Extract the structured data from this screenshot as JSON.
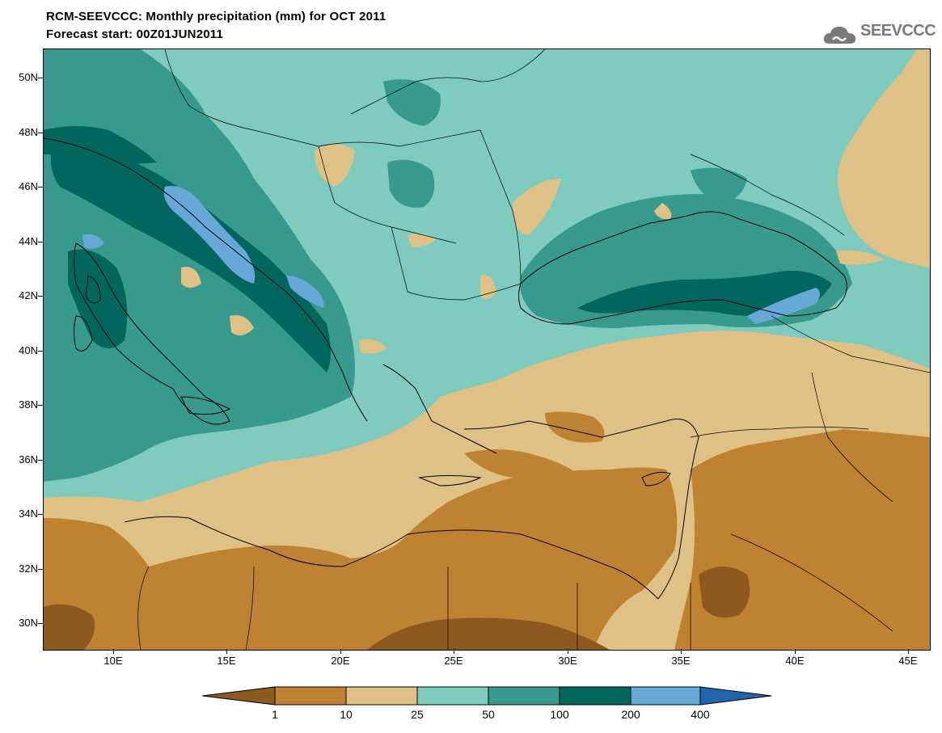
{
  "title_line1": "RCM-SEEVCCC: Monthly precipitation (mm) for OCT 2011",
  "title_line2": "Forecast start: 00Z01JUN2011",
  "logo": {
    "text": "SEEVCCC",
    "icon": "cloud-icon"
  },
  "map": {
    "lat_labels": [
      "50N",
      "48N",
      "46N",
      "44N",
      "42N",
      "40N",
      "38N",
      "36N",
      "34N",
      "32N",
      "30N"
    ],
    "lon_labels": [
      "10E",
      "15E",
      "20E",
      "25E",
      "30E",
      "35E",
      "40E",
      "45E"
    ],
    "lat_range": [
      29,
      51
    ],
    "lon_range": [
      7,
      46
    ]
  },
  "legend": {
    "labels": [
      "1",
      "10",
      "25",
      "50",
      "100",
      "200",
      "400"
    ],
    "colors": [
      "#8c5a1e",
      "#bf8232",
      "#dfc185",
      "#7fcbbd",
      "#389a8c",
      "#00665e",
      "#67a9d6",
      "#2166ac"
    ]
  }
}
